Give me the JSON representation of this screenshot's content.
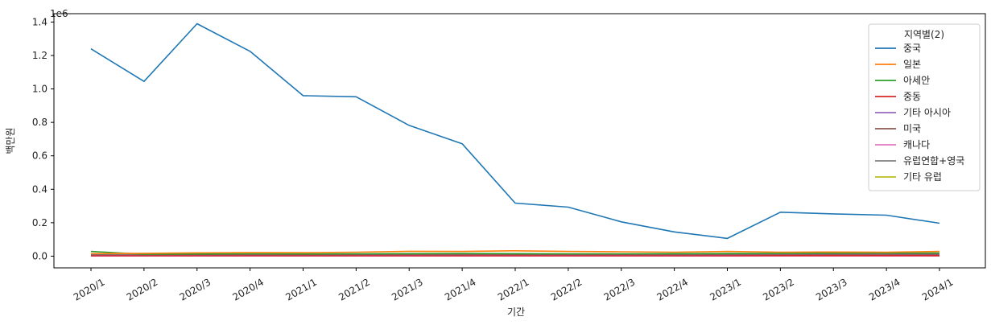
{
  "chart_data": {
    "type": "line",
    "title": "",
    "xlabel": "기간",
    "ylabel": "백만원",
    "y_offset_label": "1e6",
    "ylim": [
      -70000,
      1450000
    ],
    "y_ticks": [
      0,
      200000,
      400000,
      600000,
      800000,
      1000000,
      1200000,
      1400000
    ],
    "y_tick_labels": [
      "0.0",
      "0.2",
      "0.4",
      "0.6",
      "0.8",
      "1.0",
      "1.2",
      "1.4"
    ],
    "categories": [
      "2020/1",
      "2020/2",
      "2020/3",
      "2020/4",
      "2021/1",
      "2021/2",
      "2021/3",
      "2021/4",
      "2022/1",
      "2022/2",
      "2022/3",
      "2022/4",
      "2023/1",
      "2023/2",
      "2023/3",
      "2023/4",
      "2024/1"
    ],
    "grid": false,
    "legend": {
      "title": "지역별(2)",
      "position": "top-right"
    },
    "series": [
      {
        "name": "중국",
        "color": "#1f77b4",
        "values": [
          1240000,
          1045000,
          1390000,
          1225000,
          960000,
          953000,
          782000,
          672000,
          317000,
          293000,
          205000,
          145000,
          106000,
          263000,
          253000,
          245000,
          197000
        ]
      },
      {
        "name": "일본",
        "color": "#ff7f0e",
        "values": [
          15000,
          17000,
          20000,
          22000,
          21000,
          24000,
          29000,
          28000,
          32000,
          28000,
          26000,
          24000,
          28000,
          24000,
          25000,
          24000,
          28000
        ]
      },
      {
        "name": "아세안",
        "color": "#2ca02c",
        "values": [
          28000,
          12000,
          13000,
          14000,
          13000,
          14000,
          15000,
          16000,
          15000,
          14000,
          14000,
          15000,
          16000,
          17000,
          18000,
          19000,
          19000
        ]
      },
      {
        "name": "중동",
        "color": "#d62728",
        "values": [
          2000,
          2000,
          2000,
          2000,
          2000,
          2000,
          2000,
          2000,
          2000,
          2000,
          2000,
          2000,
          2000,
          3000,
          3000,
          3000,
          3000
        ]
      },
      {
        "name": "기타 아시아",
        "color": "#9467bd",
        "values": [
          3000,
          3000,
          3000,
          3000,
          3000,
          3000,
          3000,
          3000,
          3000,
          3000,
          3000,
          3000,
          3000,
          4000,
          4000,
          4000,
          4000
        ]
      },
      {
        "name": "미국",
        "color": "#8c564b",
        "values": [
          5000,
          5000,
          6000,
          6000,
          6000,
          7000,
          7000,
          7000,
          8000,
          7000,
          7000,
          6000,
          7000,
          8000,
          9000,
          9000,
          10000
        ]
      },
      {
        "name": "캐나다",
        "color": "#e377c2",
        "values": [
          1000,
          1000,
          1000,
          1000,
          1000,
          1000,
          1000,
          1000,
          1000,
          1000,
          1000,
          1000,
          1000,
          1000,
          1000,
          1000,
          1000
        ]
      },
      {
        "name": "유럽연합+영국",
        "color": "#7f7f7f",
        "values": [
          8000,
          9000,
          10000,
          11000,
          10000,
          11000,
          12000,
          12000,
          13000,
          12000,
          11000,
          11000,
          12000,
          14000,
          15000,
          14000,
          14000
        ]
      },
      {
        "name": "기타 유럽",
        "color": "#bcbd22",
        "values": [
          1000,
          1000,
          1000,
          1000,
          1000,
          1000,
          1000,
          1000,
          1000,
          1000,
          1000,
          1000,
          1000,
          2000,
          2000,
          2000,
          2000
        ]
      }
    ]
  }
}
